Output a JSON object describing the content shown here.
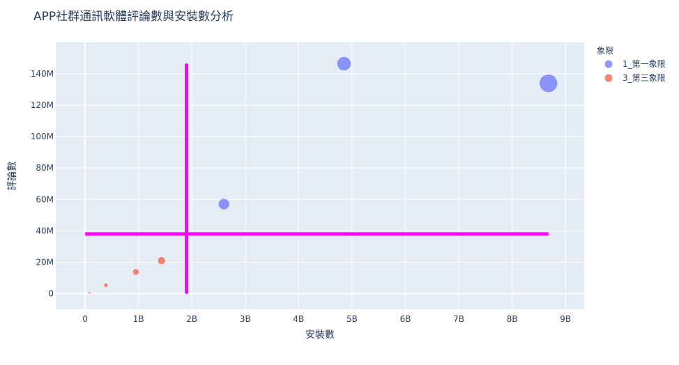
{
  "chart_data": {
    "type": "scatter",
    "title": "APP社群通訊軟體評論數與安裝數分析",
    "xlabel": "安裝數",
    "ylabel": "評論數",
    "xlim": [
      -0.55,
      9.35
    ],
    "ylim": [
      -10,
      160
    ],
    "x_unit": "B (billions)",
    "y_unit": "M (millions)",
    "x_ticks": [
      0,
      1,
      2,
      3,
      4,
      5,
      6,
      7,
      8,
      9
    ],
    "x_tick_labels": [
      "0",
      "1B",
      "2B",
      "3B",
      "4B",
      "5B",
      "6B",
      "7B",
      "8B",
      "9B"
    ],
    "y_ticks": [
      0,
      20,
      40,
      60,
      80,
      100,
      120,
      140
    ],
    "y_tick_labels": [
      "0",
      "20M",
      "40M",
      "60M",
      "80M",
      "100M",
      "120M",
      "140M"
    ],
    "grid": true,
    "background": "#e5ecf6",
    "legend": {
      "title": "象限",
      "placement": "top-right"
    },
    "series": [
      {
        "name": "1_第一象限",
        "color": "#636efa",
        "points": [
          {
            "x": 2.6,
            "y": 57,
            "size": 8
          },
          {
            "x": 4.85,
            "y": 146.5,
            "size": 10
          },
          {
            "x": 8.68,
            "y": 134,
            "size": 13
          }
        ]
      },
      {
        "name": "3_第三象限",
        "color": "#ef553b",
        "points": [
          {
            "x": 0.08,
            "y": 0.5,
            "size": 1.5
          },
          {
            "x": 0.39,
            "y": 5.3,
            "size": 3
          },
          {
            "x": 0.95,
            "y": 13.8,
            "size": 4.5
          },
          {
            "x": 1.43,
            "y": 21,
            "size": 5.5
          }
        ]
      }
    ],
    "reference_lines": [
      {
        "orientation": "horizontal",
        "y": 38,
        "x_from": 0,
        "x_to": 8.68,
        "color": "#ff00ff"
      },
      {
        "orientation": "vertical",
        "x": 1.9,
        "y_from": 0,
        "y_to": 146.5,
        "color": "#ff00ff"
      }
    ]
  }
}
